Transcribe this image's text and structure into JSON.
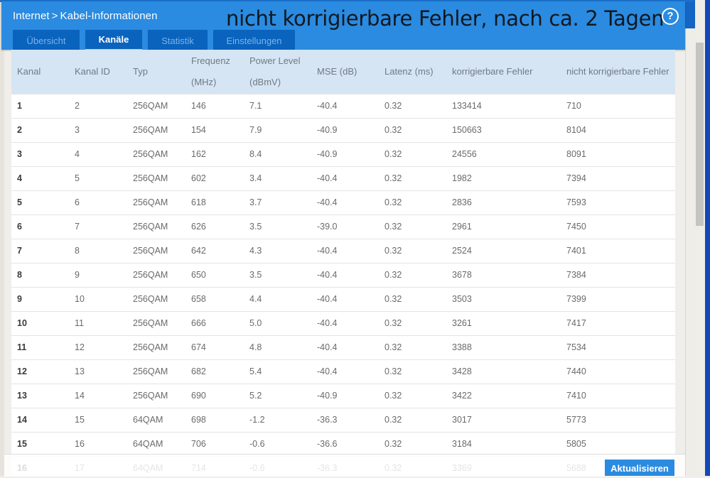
{
  "header": {
    "breadcrumb_parent": "Internet",
    "breadcrumb_sep": ">",
    "breadcrumb_current": "Kabel-Informationen",
    "overlay_annotation": "nicht korrigierbare Fehler, nach ca. 2 Tagen",
    "help_icon": "?"
  },
  "tabs": [
    {
      "label": "Übersicht",
      "active": false
    },
    {
      "label": "Kanäle",
      "active": true
    },
    {
      "label": "Statistik",
      "active": false
    },
    {
      "label": "Einstellungen",
      "active": false
    }
  ],
  "table": {
    "columns": [
      {
        "line1": "Kanal",
        "line2": ""
      },
      {
        "line1": "Kanal ID",
        "line2": ""
      },
      {
        "line1": "Typ",
        "line2": ""
      },
      {
        "line1": "Frequenz",
        "line2": "(MHz)"
      },
      {
        "line1": "Power Level",
        "line2": "(dBmV)"
      },
      {
        "line1": "MSE (dB)",
        "line2": ""
      },
      {
        "line1": "Latenz (ms)",
        "line2": ""
      },
      {
        "line1": "korrigierbare Fehler",
        "line2": ""
      },
      {
        "line1": "nicht korrigierbare Fehler",
        "line2": ""
      }
    ],
    "rows": [
      [
        "1",
        "2",
        "256QAM",
        "146",
        "7.1",
        "-40.4",
        "0.32",
        "133414",
        "710"
      ],
      [
        "2",
        "3",
        "256QAM",
        "154",
        "7.9",
        "-40.9",
        "0.32",
        "150663",
        "8104"
      ],
      [
        "3",
        "4",
        "256QAM",
        "162",
        "8.4",
        "-40.9",
        "0.32",
        "24556",
        "8091"
      ],
      [
        "4",
        "5",
        "256QAM",
        "602",
        "3.4",
        "-40.4",
        "0.32",
        "1982",
        "7394"
      ],
      [
        "5",
        "6",
        "256QAM",
        "618",
        "3.7",
        "-40.4",
        "0.32",
        "2836",
        "7593"
      ],
      [
        "6",
        "7",
        "256QAM",
        "626",
        "3.5",
        "-39.0",
        "0.32",
        "2961",
        "7450"
      ],
      [
        "7",
        "8",
        "256QAM",
        "642",
        "4.3",
        "-40.4",
        "0.32",
        "2524",
        "7401"
      ],
      [
        "8",
        "9",
        "256QAM",
        "650",
        "3.5",
        "-40.4",
        "0.32",
        "3678",
        "7384"
      ],
      [
        "9",
        "10",
        "256QAM",
        "658",
        "4.4",
        "-40.4",
        "0.32",
        "3503",
        "7399"
      ],
      [
        "10",
        "11",
        "256QAM",
        "666",
        "5.0",
        "-40.4",
        "0.32",
        "3261",
        "7417"
      ],
      [
        "11",
        "12",
        "256QAM",
        "674",
        "4.8",
        "-40.4",
        "0.32",
        "3388",
        "7534"
      ],
      [
        "12",
        "13",
        "256QAM",
        "682",
        "5.4",
        "-40.4",
        "0.32",
        "3428",
        "7440"
      ],
      [
        "13",
        "14",
        "256QAM",
        "690",
        "5.2",
        "-40.9",
        "0.32",
        "3422",
        "7410"
      ],
      [
        "14",
        "15",
        "64QAM",
        "698",
        "-1.2",
        "-36.3",
        "0.32",
        "3017",
        "5773"
      ],
      [
        "15",
        "16",
        "64QAM",
        "706",
        "-0.6",
        "-36.6",
        "0.32",
        "3184",
        "5805"
      ],
      [
        "16",
        "17",
        "64QAM",
        "714",
        "-0.6",
        "-36.3",
        "0.32",
        "3369",
        "5688"
      ]
    ]
  },
  "footer": {
    "refresh_label": "Aktualisieren"
  },
  "colors": {
    "header_blue": "#2a8be0",
    "tab_dark_blue": "#0a63bd",
    "active_tab_underline": "#c6e35a",
    "table_header_bg": "#d5e5f4"
  }
}
